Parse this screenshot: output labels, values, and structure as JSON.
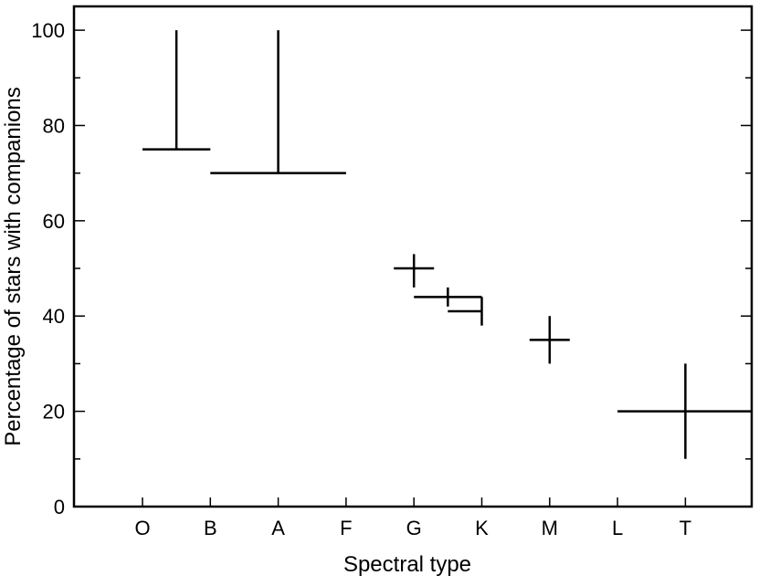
{
  "chart_data": {
    "type": "scatter",
    "title": "",
    "xlabel": "Spectral type",
    "ylabel": "Percentage of stars with companions",
    "categories": [
      "O",
      "B",
      "A",
      "F",
      "G",
      "K",
      "M",
      "L",
      "T"
    ],
    "ylim": [
      0,
      105
    ],
    "yticks": [
      0,
      20,
      40,
      60,
      80,
      100
    ],
    "grid": false,
    "legend": "none",
    "series": [
      {
        "points": [
          {
            "x_from": "O",
            "x_to": "B",
            "x_center": "O-B",
            "y": 75,
            "y_low": 75,
            "y_high": 100
          },
          {
            "x_from": "B",
            "x_to": "F",
            "x_center": "A",
            "y": 70,
            "y_low": 70,
            "y_high": 100
          },
          {
            "x_from": "G",
            "x_to": "G",
            "x_center": "G",
            "y": 50,
            "y_low": 46,
            "y_high": 53
          },
          {
            "x_from": "G",
            "x_to": "K",
            "x_center": "G-K",
            "y": 44,
            "y_low": 42,
            "y_high": 46
          },
          {
            "x_from": "G-K",
            "x_to": "K",
            "x_center": "K",
            "y": 41,
            "y_low": 38,
            "y_high": 44
          },
          {
            "x_from": "M",
            "x_to": "M",
            "x_center": "M",
            "y": 35,
            "y_low": 30,
            "y_high": 40
          },
          {
            "x_from": "L",
            "x_to": "T",
            "x_center": "T",
            "y": 20,
            "y_low": 10,
            "y_high": 30
          }
        ]
      }
    ]
  },
  "style": {
    "line_color": "#000000",
    "background": "#ffffff"
  }
}
